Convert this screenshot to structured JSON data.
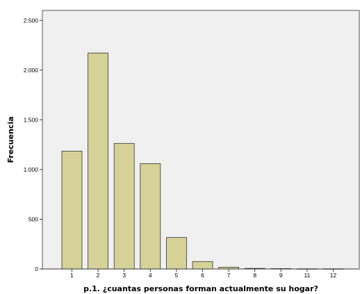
{
  "chart_data": {
    "type": "bar",
    "title": "",
    "xlabel": "p.1. ¿cuantas personas forman actualmente su hogar?",
    "ylabel": "Frecuencia",
    "categories": [
      "1",
      "2",
      "3",
      "4",
      "5",
      "6",
      "7",
      "8",
      "9",
      "11",
      "12"
    ],
    "values": [
      1185,
      2172,
      1263,
      1060,
      317,
      75,
      18,
      6,
      4,
      2,
      2
    ],
    "ylim": [
      0,
      2600
    ],
    "yticks": [
      0,
      500,
      1000,
      1500,
      2000,
      2500
    ],
    "ytick_labels": [
      "0",
      "500",
      "1.000",
      "1.500",
      "2.000",
      "2.500"
    ],
    "grid": false,
    "legend": "none",
    "colors": {
      "plot_background": "#f0f0f0",
      "bar_fill": "#d6d196",
      "bar_stroke": "#333333"
    }
  }
}
